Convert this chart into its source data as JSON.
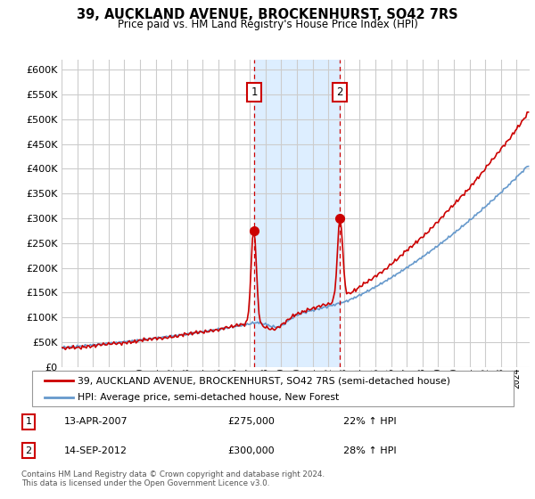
{
  "title": "39, AUCKLAND AVENUE, BROCKENHURST, SO42 7RS",
  "subtitle": "Price paid vs. HM Land Registry's House Price Index (HPI)",
  "legend_line1": "39, AUCKLAND AVENUE, BROCKENHURST, SO42 7RS (semi-detached house)",
  "legend_line2": "HPI: Average price, semi-detached house, New Forest",
  "footer": "Contains HM Land Registry data © Crown copyright and database right 2024.\nThis data is licensed under the Open Government Licence v3.0.",
  "sale1_date": "13-APR-2007",
  "sale1_price": "£275,000",
  "sale1_hpi": "22% ↑ HPI",
  "sale1_year": 2007.28,
  "sale1_price_val": 275000,
  "sale2_date": "14-SEP-2012",
  "sale2_price": "£300,000",
  "sale2_hpi": "28% ↑ HPI",
  "sale2_year": 2012.71,
  "sale2_price_val": 300000,
  "red_color": "#cc0000",
  "blue_color": "#6699cc",
  "shade_color": "#ddeeff",
  "ylim": [
    0,
    620000
  ],
  "yticks": [
    0,
    50000,
    100000,
    150000,
    200000,
    250000,
    300000,
    350000,
    400000,
    450000,
    500000,
    550000,
    600000
  ],
  "grid_color": "#cccccc",
  "xlim_start": 1995,
  "xlim_end": 2024.83
}
